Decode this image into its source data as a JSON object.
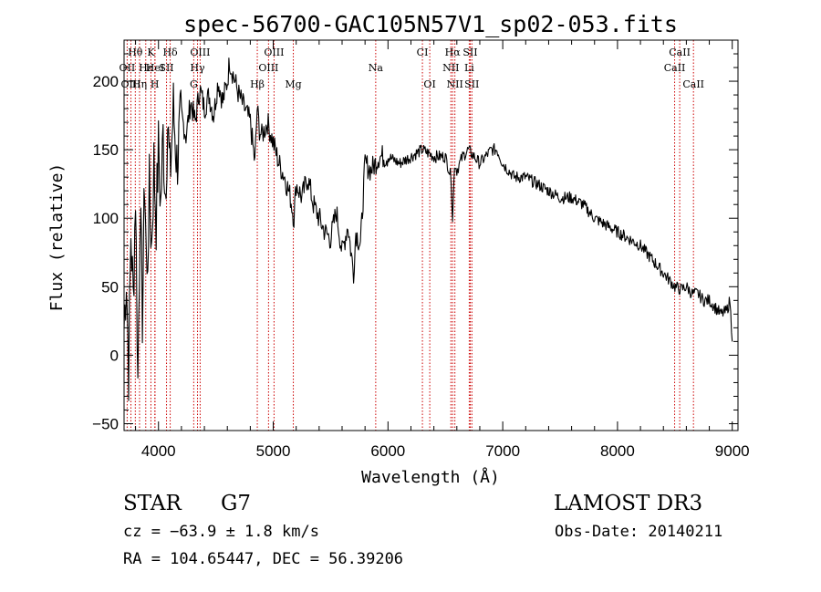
{
  "chart_data": {
    "type": "line",
    "title": "spec-56700-GAC105N57V1_sp02-053.fits",
    "xlabel": "Wavelength (Å)",
    "ylabel": "Flux (relative)",
    "xlim": [
      3700,
      9050
    ],
    "ylim": [
      -55,
      230
    ],
    "xticks": [
      4000,
      5000,
      6000,
      7000,
      8000,
      9000
    ],
    "yticks": [
      -50,
      0,
      50,
      100,
      150,
      200
    ],
    "xtick_labels": [
      "4000",
      "5000",
      "6000",
      "7000",
      "8000",
      "9000"
    ],
    "ytick_labels": [
      "−50",
      "0",
      "50",
      "100",
      "150",
      "200"
    ],
    "series": [
      {
        "name": "flux",
        "x": [
          3700,
          3720,
          3740,
          3760,
          3780,
          3800,
          3820,
          3840,
          3860,
          3880,
          3900,
          3920,
          3940,
          3960,
          3980,
          4000,
          4020,
          4040,
          4060,
          4080,
          4100,
          4130,
          4160,
          4200,
          4240,
          4280,
          4320,
          4360,
          4400,
          4440,
          4480,
          4520,
          4560,
          4600,
          4620,
          4650,
          4700,
          4750,
          4800,
          4840,
          4860,
          4880,
          4900,
          4950,
          5000,
          5050,
          5100,
          5150,
          5180,
          5200,
          5250,
          5300,
          5350,
          5400,
          5450,
          5500,
          5550,
          5600,
          5650,
          5700,
          5720,
          5760,
          5800,
          5850,
          5890,
          5920,
          6000,
          6100,
          6200,
          6300,
          6400,
          6500,
          6550,
          6563,
          6580,
          6600,
          6650,
          6700,
          6750,
          6800,
          6850,
          6900,
          6950,
          7000,
          7050,
          7100,
          7200,
          7300,
          7400,
          7500,
          7600,
          7700,
          7800,
          7900,
          8000,
          8100,
          8200,
          8300,
          8400,
          8450,
          8500,
          8550,
          8600,
          8650,
          8700,
          8750,
          8800,
          8850,
          8900,
          8950,
          8980,
          9000
        ],
        "values": [
          20,
          60,
          -10,
          90,
          40,
          120,
          -20,
          110,
          30,
          130,
          50,
          120,
          80,
          140,
          100,
          150,
          110,
          160,
          120,
          170,
          130,
          180,
          140,
          175,
          160,
          185,
          170,
          195,
          180,
          190,
          175,
          200,
          185,
          200,
          215,
          205,
          190,
          180,
          170,
          140,
          180,
          165,
          160,
          170,
          155,
          140,
          130,
          115,
          100,
          125,
          115,
          130,
          110,
          100,
          90,
          85,
          105,
          75,
          95,
          60,
          90,
          80,
          140,
          135,
          140,
          145,
          145,
          140,
          145,
          150,
          145,
          145,
          130,
          100,
          140,
          135,
          145,
          150,
          145,
          140,
          145,
          150,
          150,
          140,
          135,
          130,
          130,
          125,
          120,
          115,
          115,
          110,
          100,
          95,
          90,
          85,
          80,
          70,
          60,
          55,
          50,
          48,
          50,
          45,
          45,
          40,
          40,
          35,
          30,
          32,
          40,
          10
        ]
      }
    ],
    "line_labels": [
      {
        "name": "Hθ",
        "x": 3798,
        "row": 1
      },
      {
        "name": "K",
        "x": 3934,
        "row": 1
      },
      {
        "name": "Hδ",
        "x": 4102,
        "row": 1
      },
      {
        "name": "OIII",
        "x": 4363,
        "row": 1
      },
      {
        "name": "OIII",
        "x": 5007,
        "row": 1
      },
      {
        "name": "CI",
        "x": 6300,
        "row": 1
      },
      {
        "name": "Hα",
        "x": 6563,
        "row": 1
      },
      {
        "name": "SII",
        "x": 6717,
        "row": 1
      },
      {
        "name": "CaII",
        "x": 8542,
        "row": 1
      },
      {
        "name": "OII",
        "x": 3727,
        "row": 2
      },
      {
        "name": "Hε",
        "x": 3889,
        "row": 2
      },
      {
        "name": "HeI",
        "x": 3970,
        "row": 2
      },
      {
        "name": "SII",
        "x": 4070,
        "row": 2
      },
      {
        "name": "Hγ",
        "x": 4340,
        "row": 2
      },
      {
        "name": "OIII",
        "x": 4959,
        "row": 2
      },
      {
        "name": "Na",
        "x": 5893,
        "row": 2
      },
      {
        "name": "NII",
        "x": 6548,
        "row": 2
      },
      {
        "name": "Li",
        "x": 6708,
        "row": 2
      },
      {
        "name": "CaII",
        "x": 8498,
        "row": 2
      },
      {
        "name": "OIII",
        "x": 3760,
        "row": 3
      },
      {
        "name": "Hη",
        "x": 3835,
        "row": 3
      },
      {
        "name": "H",
        "x": 3968,
        "row": 3
      },
      {
        "name": "G",
        "x": 4307,
        "row": 3
      },
      {
        "name": "Hβ",
        "x": 4861,
        "row": 3
      },
      {
        "name": "Mg",
        "x": 5175,
        "row": 3
      },
      {
        "name": "OI",
        "x": 6364,
        "row": 3
      },
      {
        "name": "NII",
        "x": 6583,
        "row": 3
      },
      {
        "name": "SII",
        "x": 6731,
        "row": 3
      },
      {
        "name": "CaII",
        "x": 8662,
        "row": 3
      }
    ]
  },
  "info": {
    "object_class": "STAR",
    "subclass": "G7",
    "survey": "LAMOST DR3",
    "redshift": "cz = −63.9 ± 1.8 km/s",
    "obs_date": "Obs-Date: 20140211",
    "coords": "RA = 104.65447, DEC =  56.39206"
  },
  "colors": {
    "line": "#000000",
    "marker": "#cc0000",
    "background": "#ffffff"
  }
}
